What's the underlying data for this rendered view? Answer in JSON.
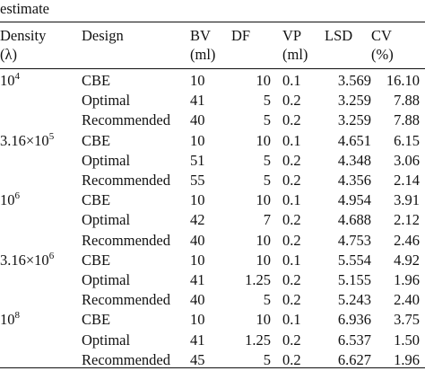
{
  "caption": "estimate",
  "headers": {
    "density": [
      "Density",
      "(λ)"
    ],
    "design": [
      "Design"
    ],
    "bv": [
      "BV",
      "(ml)"
    ],
    "df": [
      "DF"
    ],
    "vp": [
      "VP",
      "(ml)"
    ],
    "lsd": [
      "LSD"
    ],
    "cv": [
      "CV",
      "(%)"
    ]
  },
  "groups": [
    {
      "density": {
        "base": "10",
        "exp": "4"
      },
      "rows": [
        {
          "design": "CBE",
          "bv": "10",
          "df": "10",
          "vp": "0.1",
          "lsd": "3.569",
          "cv": "16.10"
        },
        {
          "design": "Optimal",
          "bv": "41",
          "df": "5",
          "vp": "0.2",
          "lsd": "3.259",
          "cv": "7.88"
        },
        {
          "design": "Recommended",
          "bv": "40",
          "df": "5",
          "vp": "0.2",
          "lsd": "3.259",
          "cv": "7.88"
        }
      ]
    },
    {
      "density": {
        "base": "3.16×10",
        "exp": "5"
      },
      "rows": [
        {
          "design": "CBE",
          "bv": "10",
          "df": "10",
          "vp": "0.1",
          "lsd": "4.651",
          "cv": "6.15"
        },
        {
          "design": "Optimal",
          "bv": "51",
          "df": "5",
          "vp": "0.2",
          "lsd": "4.348",
          "cv": "3.06"
        },
        {
          "design": "Recommended",
          "bv": "55",
          "df": "5",
          "vp": "0.2",
          "lsd": "4.356",
          "cv": "2.14"
        }
      ]
    },
    {
      "density": {
        "base": "10",
        "exp": "6"
      },
      "rows": [
        {
          "design": "CBE",
          "bv": "10",
          "df": "10",
          "vp": "0.1",
          "lsd": "4.954",
          "cv": "3.91"
        },
        {
          "design": "Optimal",
          "bv": "42",
          "df": "7",
          "vp": "0.2",
          "lsd": "4.688",
          "cv": "2.12"
        },
        {
          "design": "Recommended",
          "bv": "40",
          "df": "10",
          "vp": "0.2",
          "lsd": "4.753",
          "cv": "2.46"
        }
      ]
    },
    {
      "density": {
        "base": "3.16×10",
        "exp": "6"
      },
      "rows": [
        {
          "design": "CBE",
          "bv": "10",
          "df": "10",
          "vp": "0.1",
          "lsd": "5.554",
          "cv": "4.92"
        },
        {
          "design": "Optimal",
          "bv": "41",
          "df": "1.25",
          "vp": "0.2",
          "lsd": "5.155",
          "cv": "1.96"
        },
        {
          "design": "Recommended",
          "bv": "40",
          "df": "5",
          "vp": "0.2",
          "lsd": "5.243",
          "cv": "2.40"
        }
      ]
    },
    {
      "density": {
        "base": "10",
        "exp": "8"
      },
      "rows": [
        {
          "design": "CBE",
          "bv": "10",
          "df": "10",
          "vp": "0.1",
          "lsd": "6.936",
          "cv": "3.75"
        },
        {
          "design": "Optimal",
          "bv": "41",
          "df": "1.25",
          "vp": "0.2",
          "lsd": "6.537",
          "cv": "1.50"
        },
        {
          "design": "Recommended",
          "bv": "45",
          "df": "5",
          "vp": "0.2",
          "lsd": "6.627",
          "cv": "1.96"
        }
      ]
    }
  ]
}
